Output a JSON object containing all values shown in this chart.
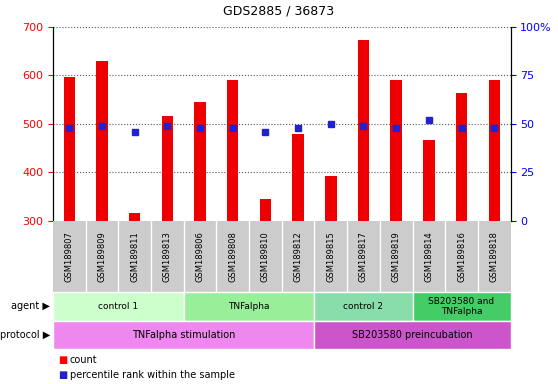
{
  "title": "GDS2885 / 36873",
  "samples": [
    "GSM189807",
    "GSM189809",
    "GSM189811",
    "GSM189813",
    "GSM189806",
    "GSM189808",
    "GSM189810",
    "GSM189812",
    "GSM189815",
    "GSM189817",
    "GSM189819",
    "GSM189814",
    "GSM189816",
    "GSM189818"
  ],
  "counts": [
    597,
    630,
    316,
    516,
    546,
    591,
    344,
    479,
    393,
    672,
    591,
    467,
    563,
    591
  ],
  "percentile_ranks": [
    48,
    49,
    46,
    49,
    48,
    48,
    46,
    48,
    50,
    49,
    48,
    52,
    48,
    48
  ],
  "count_base": 300,
  "ylim_left": [
    300,
    700
  ],
  "ylim_right": [
    0,
    100
  ],
  "yticks_left": [
    300,
    400,
    500,
    600,
    700
  ],
  "yticks_right": [
    0,
    25,
    50,
    75,
    100
  ],
  "bar_color": "#EE0000",
  "dot_color": "#2222CC",
  "agent_groups": [
    {
      "label": "control 1",
      "start": 0,
      "end": 4,
      "color": "#CCFFCC"
    },
    {
      "label": "TNFalpha",
      "start": 4,
      "end": 8,
      "color": "#99EE99"
    },
    {
      "label": "control 2",
      "start": 8,
      "end": 11,
      "color": "#88DDAA"
    },
    {
      "label": "SB203580 and\nTNFalpha",
      "start": 11,
      "end": 14,
      "color": "#44CC66"
    }
  ],
  "protocol_groups": [
    {
      "label": "TNFalpha stimulation",
      "start": 0,
      "end": 8,
      "color": "#EE88EE"
    },
    {
      "label": "SB203580 preincubation",
      "start": 8,
      "end": 14,
      "color": "#CC55CC"
    }
  ],
  "sample_label_bg": "#CCCCCC",
  "grid_color": "#555555",
  "bar_width": 0.35
}
